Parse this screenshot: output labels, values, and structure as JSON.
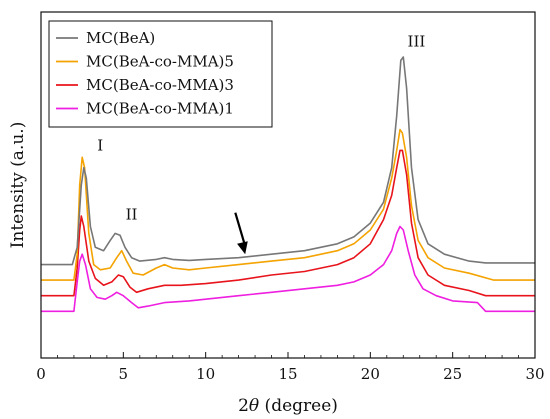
{
  "chart_data": {
    "type": "line",
    "xlabel_prefix": "2",
    "xlabel_symbol": "θ",
    "xlabel_suffix": " (degree)",
    "ylabel": "Intensity (a.u.)",
    "xlim": [
      0,
      30
    ],
    "x_ticks": [
      "0",
      "5",
      "10",
      "15",
      "20",
      "25",
      "30"
    ],
    "grid": false,
    "legend_position": "top-left",
    "series": [
      {
        "name": "MC(BeA)",
        "color": "#777777",
        "points": [
          [
            0,
            0.27
          ],
          [
            1.9,
            0.27
          ],
          [
            2.2,
            0.32
          ],
          [
            2.45,
            0.5
          ],
          [
            2.6,
            0.55
          ],
          [
            2.75,
            0.52
          ],
          [
            3.0,
            0.38
          ],
          [
            3.3,
            0.32
          ],
          [
            3.8,
            0.31
          ],
          [
            4.2,
            0.34
          ],
          [
            4.5,
            0.36
          ],
          [
            4.8,
            0.355
          ],
          [
            5.1,
            0.32
          ],
          [
            5.5,
            0.29
          ],
          [
            6.0,
            0.28
          ],
          [
            7.0,
            0.285
          ],
          [
            7.5,
            0.29
          ],
          [
            8.0,
            0.285
          ],
          [
            9,
            0.282
          ],
          [
            10,
            0.285
          ],
          [
            12,
            0.29
          ],
          [
            14,
            0.3
          ],
          [
            16,
            0.31
          ],
          [
            18,
            0.33
          ],
          [
            19,
            0.35
          ],
          [
            20,
            0.39
          ],
          [
            20.8,
            0.45
          ],
          [
            21.3,
            0.55
          ],
          [
            21.6,
            0.7
          ],
          [
            21.85,
            0.86
          ],
          [
            22.0,
            0.87
          ],
          [
            22.2,
            0.78
          ],
          [
            22.5,
            0.55
          ],
          [
            22.9,
            0.4
          ],
          [
            23.5,
            0.33
          ],
          [
            24.5,
            0.3
          ],
          [
            26,
            0.28
          ],
          [
            27,
            0.275
          ],
          [
            30,
            0.275
          ]
        ]
      },
      {
        "name": "MC(BeA-co-MMA)5",
        "color": "#f4a300",
        "points": [
          [
            0,
            0.225
          ],
          [
            2.0,
            0.225
          ],
          [
            2.2,
            0.3
          ],
          [
            2.35,
            0.5
          ],
          [
            2.5,
            0.58
          ],
          [
            2.65,
            0.55
          ],
          [
            2.9,
            0.36
          ],
          [
            3.2,
            0.27
          ],
          [
            3.6,
            0.255
          ],
          [
            4.2,
            0.26
          ],
          [
            4.6,
            0.29
          ],
          [
            4.9,
            0.31
          ],
          [
            5.2,
            0.28
          ],
          [
            5.6,
            0.245
          ],
          [
            6.2,
            0.24
          ],
          [
            7.0,
            0.26
          ],
          [
            7.5,
            0.27
          ],
          [
            8.0,
            0.26
          ],
          [
            9,
            0.255
          ],
          [
            10,
            0.26
          ],
          [
            12,
            0.27
          ],
          [
            14,
            0.28
          ],
          [
            16,
            0.29
          ],
          [
            18,
            0.31
          ],
          [
            19,
            0.33
          ],
          [
            20,
            0.37
          ],
          [
            20.8,
            0.43
          ],
          [
            21.3,
            0.52
          ],
          [
            21.6,
            0.6
          ],
          [
            21.8,
            0.66
          ],
          [
            21.95,
            0.65
          ],
          [
            22.2,
            0.58
          ],
          [
            22.5,
            0.44
          ],
          [
            22.9,
            0.34
          ],
          [
            23.5,
            0.29
          ],
          [
            24.5,
            0.26
          ],
          [
            26,
            0.245
          ],
          [
            27.5,
            0.225
          ],
          [
            30,
            0.225
          ]
        ]
      },
      {
        "name": "MC(BeA-co-MMA)3",
        "color": "#e8141c",
        "points": [
          [
            0,
            0.18
          ],
          [
            2.0,
            0.18
          ],
          [
            2.2,
            0.26
          ],
          [
            2.35,
            0.37
          ],
          [
            2.45,
            0.41
          ],
          [
            2.6,
            0.38
          ],
          [
            2.9,
            0.28
          ],
          [
            3.3,
            0.23
          ],
          [
            3.8,
            0.21
          ],
          [
            4.3,
            0.22
          ],
          [
            4.7,
            0.24
          ],
          [
            5.0,
            0.235
          ],
          [
            5.4,
            0.205
          ],
          [
            5.8,
            0.19
          ],
          [
            6.5,
            0.2
          ],
          [
            7.5,
            0.21
          ],
          [
            8.5,
            0.21
          ],
          [
            10,
            0.215
          ],
          [
            12,
            0.225
          ],
          [
            14,
            0.24
          ],
          [
            16,
            0.25
          ],
          [
            18,
            0.27
          ],
          [
            19,
            0.29
          ],
          [
            20,
            0.33
          ],
          [
            20.8,
            0.4
          ],
          [
            21.3,
            0.47
          ],
          [
            21.6,
            0.55
          ],
          [
            21.8,
            0.6
          ],
          [
            21.95,
            0.6
          ],
          [
            22.2,
            0.53
          ],
          [
            22.5,
            0.39
          ],
          [
            22.9,
            0.29
          ],
          [
            23.5,
            0.24
          ],
          [
            24.5,
            0.21
          ],
          [
            26,
            0.195
          ],
          [
            27,
            0.18
          ],
          [
            30,
            0.18
          ]
        ]
      },
      {
        "name": "MC(BeA-co-MMA)1",
        "color": "#ee1fe0",
        "points": [
          [
            0,
            0.135
          ],
          [
            2.0,
            0.135
          ],
          [
            2.2,
            0.22
          ],
          [
            2.35,
            0.28
          ],
          [
            2.5,
            0.3
          ],
          [
            2.7,
            0.27
          ],
          [
            3.0,
            0.2
          ],
          [
            3.4,
            0.175
          ],
          [
            3.9,
            0.17
          ],
          [
            4.3,
            0.18
          ],
          [
            4.6,
            0.19
          ],
          [
            5.0,
            0.18
          ],
          [
            5.5,
            0.16
          ],
          [
            5.9,
            0.145
          ],
          [
            6.5,
            0.15
          ],
          [
            7.5,
            0.16
          ],
          [
            9,
            0.165
          ],
          [
            10,
            0.17
          ],
          [
            12,
            0.18
          ],
          [
            14,
            0.19
          ],
          [
            16,
            0.2
          ],
          [
            18,
            0.21
          ],
          [
            19,
            0.22
          ],
          [
            20,
            0.24
          ],
          [
            20.8,
            0.27
          ],
          [
            21.3,
            0.31
          ],
          [
            21.6,
            0.36
          ],
          [
            21.8,
            0.38
          ],
          [
            22.0,
            0.37
          ],
          [
            22.3,
            0.31
          ],
          [
            22.7,
            0.24
          ],
          [
            23.2,
            0.2
          ],
          [
            24,
            0.18
          ],
          [
            25,
            0.165
          ],
          [
            26.5,
            0.16
          ],
          [
            27,
            0.135
          ],
          [
            30,
            0.135
          ]
        ]
      }
    ],
    "annotations": [
      {
        "text": "I",
        "x": 3.6,
        "y": 0.6
      },
      {
        "text": "II",
        "x": 5.5,
        "y": 0.4
      },
      {
        "text": "III",
        "x": 22.8,
        "y": 0.9
      }
    ],
    "arrow": {
      "from": [
        11.8,
        0.42
      ],
      "to": [
        12.4,
        0.3
      ]
    }
  }
}
